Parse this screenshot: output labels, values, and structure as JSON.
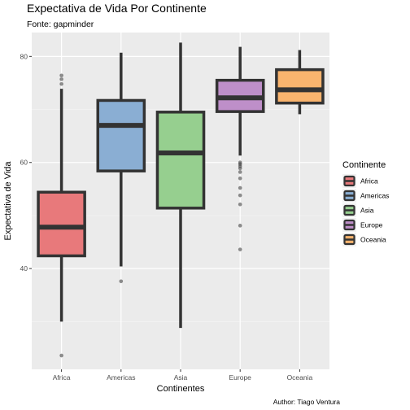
{
  "chart_data": {
    "type": "boxplot",
    "title": "Expectativa de Vida Por Continente",
    "subtitle": "Fonte: gapminder",
    "xlabel": "Continentes",
    "ylabel": "Expectativa de Vida",
    "caption": "Author: Tiago Ventura",
    "ylim": [
      21,
      84.5
    ],
    "yticks": [
      40,
      60,
      80
    ],
    "grid": true,
    "legend": {
      "title": "Continente",
      "position": "right",
      "entries": [
        "Africa",
        "Americas",
        "Asia",
        "Europe",
        "Oceania"
      ]
    },
    "categories": [
      "Africa",
      "Americas",
      "Asia",
      "Europe",
      "Oceania"
    ],
    "colors": [
      "#E8797B",
      "#8AAED3",
      "#96CF8F",
      "#BE8FC9",
      "#F9B46E"
    ],
    "boxes": [
      {
        "name": "Africa",
        "whisker_low": 30.0,
        "q1": 42.4,
        "median": 47.8,
        "q3": 54.4,
        "whisker_high": 73.9,
        "outliers": [
          23.6,
          74.8,
          75.7,
          76.4
        ]
      },
      {
        "name": "Americas",
        "whisker_low": 40.4,
        "q1": 58.4,
        "median": 67.0,
        "q3": 71.7,
        "whisker_high": 80.7,
        "outliers": [
          37.6
        ]
      },
      {
        "name": "Asia",
        "whisker_low": 28.8,
        "q1": 51.4,
        "median": 61.8,
        "q3": 69.5,
        "whisker_high": 82.6,
        "outliers": []
      },
      {
        "name": "Europe",
        "whisker_low": 61.3,
        "q1": 69.6,
        "median": 72.2,
        "q3": 75.5,
        "whisker_high": 81.8,
        "outliers": [
          43.6,
          48.1,
          52.1,
          53.8,
          55.2,
          57.0,
          58.2,
          58.9,
          59.3,
          59.7,
          60.0
        ]
      },
      {
        "name": "Oceania",
        "whisker_low": 69.1,
        "q1": 71.2,
        "median": 73.7,
        "q3": 77.5,
        "whisker_high": 81.2,
        "outliers": []
      }
    ]
  }
}
